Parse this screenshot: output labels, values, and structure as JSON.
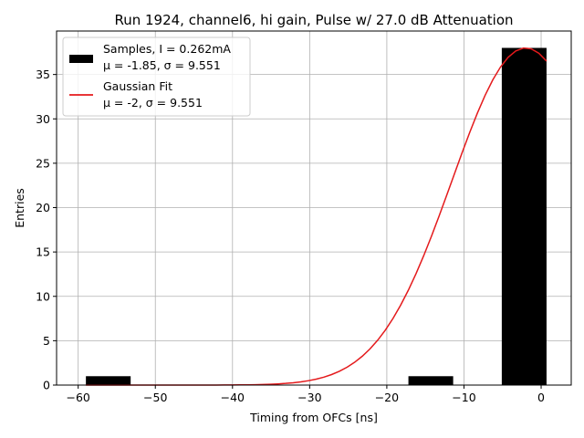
{
  "chart_data": {
    "type": "bar",
    "title": "Run 1924, channel6, hi gain, Pulse w/ 27.0 dB Attenuation",
    "xlabel": "Timing from OFCs [ns]",
    "ylabel": "Entries",
    "xlim": [
      -62.8,
      3.9
    ],
    "ylim": [
      0,
      39.9
    ],
    "xticks": [
      -60,
      -50,
      -40,
      -30,
      -20,
      -10,
      0
    ],
    "yticks": [
      0,
      5,
      10,
      15,
      20,
      25,
      30,
      35
    ],
    "grid": true,
    "legend_position": "top-left",
    "histogram": {
      "name": "Samples, I = 0.262mA",
      "stats": "μ = -1.85, σ = 9.551",
      "color": "#000000",
      "bins": [
        {
          "x0": -59.0,
          "x1": -53.2,
          "count": 1
        },
        {
          "x0": -17.2,
          "x1": -11.4,
          "count": 1
        },
        {
          "x0": -5.1,
          "x1": 0.7,
          "count": 38
        }
      ]
    },
    "fit": {
      "name": "Gaussian Fit",
      "stats": "μ = -2, σ = 9.551",
      "color": "#e41a1c",
      "amplitude": 38,
      "mu": -2,
      "sigma": 9.551,
      "x_range": [
        -59.0,
        0.7
      ]
    }
  }
}
